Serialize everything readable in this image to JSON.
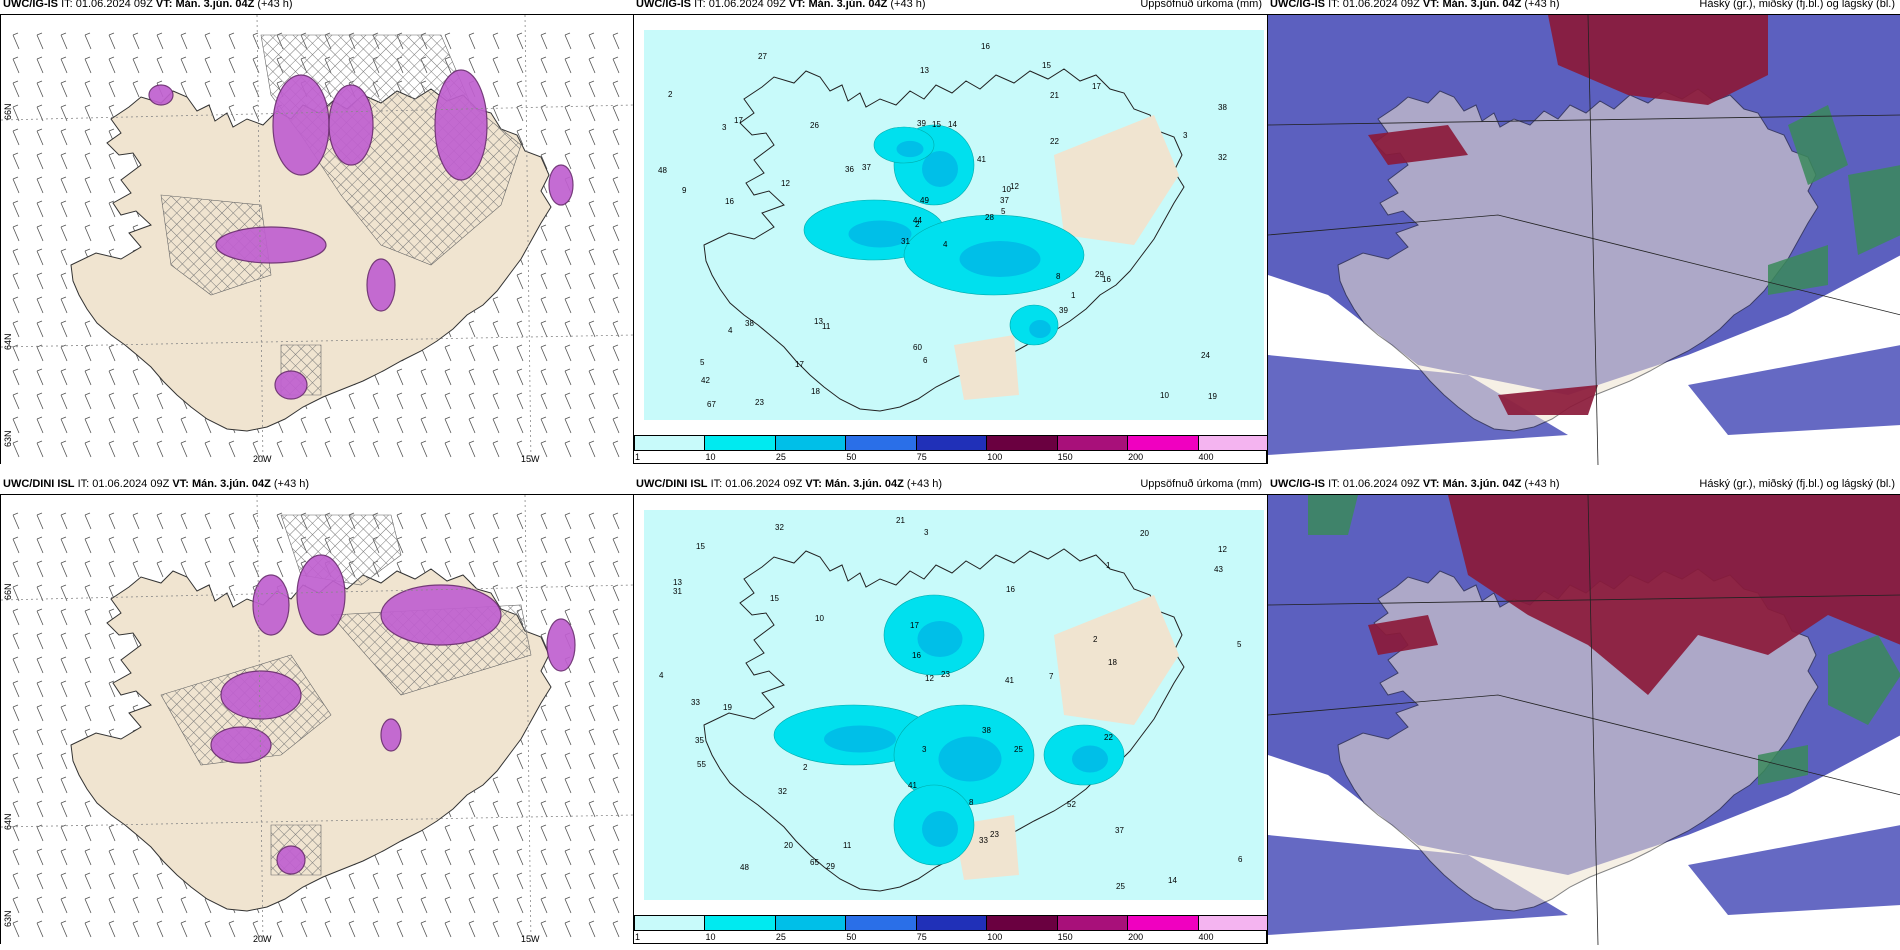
{
  "rows": [
    {
      "model_label": "UWC/IG-IS",
      "init_label": "IT:",
      "init_time": "01.06.2024 09Z",
      "valid_label": "VT:",
      "valid_time": "Mán. 3.jún. 04Z",
      "lead": "(+43 h)",
      "precip_title": "Uppsöfnuð úrkoma (mm)",
      "cloud_title": "Háský (gr.), miðský (fj.bl.) og lágský (bl.)",
      "cloud_model_label": "UWC/IG-IS"
    },
    {
      "model_label": "UWC/DINI ISL",
      "init_label": "IT:",
      "init_time": "01.06.2024 09Z",
      "valid_label": "VT:",
      "valid_time": "Mán. 3.jún. 04Z",
      "lead": "(+43 h)",
      "precip_title": "Uppsöfnuð úrkoma (mm)",
      "cloud_title": "Háský (gr.), miðský (fj.bl.) og lágský (bl.)",
      "cloud_model_label": "UWC/IG-IS"
    }
  ],
  "map_labels": {
    "lat66": "66N",
    "lat64": "64N",
    "lat63": "63N",
    "lon20": "20W",
    "lon15": "15W"
  },
  "colorbar": {
    "ticks": [
      "1",
      "10",
      "25",
      "50",
      "75",
      "100",
      "150",
      "200",
      "400"
    ],
    "colors": [
      "#c8fafa",
      "#00eaf0",
      "#00bfe8",
      "#2a6fe8",
      "#2030b8",
      "#6a0040",
      "#a8107a",
      "#f000c0",
      "#f4b4f0"
    ]
  },
  "precip_values_row1": [
    "4",
    "3",
    "2",
    "5",
    "10",
    "11",
    "15",
    "14",
    "21",
    "28",
    "27",
    "19",
    "16",
    "38",
    "31",
    "22",
    "23",
    "39",
    "41",
    "38",
    "37",
    "42",
    "17",
    "15",
    "12",
    "16",
    "17",
    "13",
    "9",
    "8",
    "32",
    "44",
    "60",
    "49",
    "26",
    "17",
    "13",
    "10",
    "24",
    "29",
    "16",
    "36",
    "12",
    "39",
    "18",
    "48",
    "37",
    "67",
    "6",
    "5",
    "4",
    "3",
    "2",
    "1"
  ],
  "precip_values_row2": [
    "4",
    "3",
    "2",
    "12",
    "13",
    "14",
    "19",
    "16",
    "17",
    "20",
    "23",
    "22",
    "21",
    "31",
    "15",
    "32",
    "23",
    "33",
    "38",
    "41",
    "52",
    "37",
    "43",
    "16",
    "20",
    "12",
    "25",
    "32",
    "29",
    "33",
    "35",
    "25",
    "41",
    "48",
    "65",
    "55",
    "18",
    "15",
    "11",
    "10",
    "8",
    "7",
    "6",
    "5",
    "3",
    "2",
    "1"
  ],
  "colors": {
    "land": "#f0e4d0",
    "sea_light": "#c8fafa",
    "cloud_low": "#4a4fb8",
    "cloud_high": "#8b1a3a",
    "cloud_mid": "#3a8a5a",
    "precip_purple": "#c060d0"
  }
}
